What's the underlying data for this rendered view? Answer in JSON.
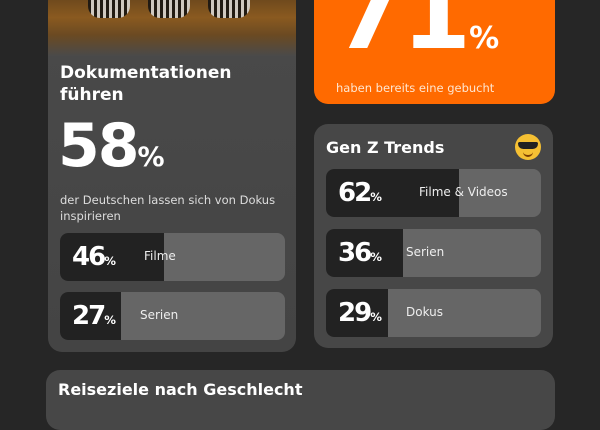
{
  "documentaries": {
    "title": "Dokumentationen führen",
    "value": "58",
    "unit": "%",
    "subtitle": "der Deutschen lassen sich von Dokus inspirieren",
    "bars": [
      {
        "value": 46,
        "label": "Filme"
      },
      {
        "value": 27,
        "label": "Serien"
      }
    ]
  },
  "booked": {
    "value": "71",
    "unit": "%",
    "subtitle": "haben bereits eine gebucht",
    "color": "#ff6a00"
  },
  "genz": {
    "title": "Gen Z Trends",
    "emoji": "smiling-face-with-sunglasses",
    "bars": [
      {
        "value": 62,
        "label": "Filme & Videos"
      },
      {
        "value": 36,
        "label": "Serien"
      },
      {
        "value": 29,
        "label": "Dokus"
      }
    ]
  },
  "destinations": {
    "title": "Reiseziele nach Geschlecht"
  },
  "unit": "%"
}
